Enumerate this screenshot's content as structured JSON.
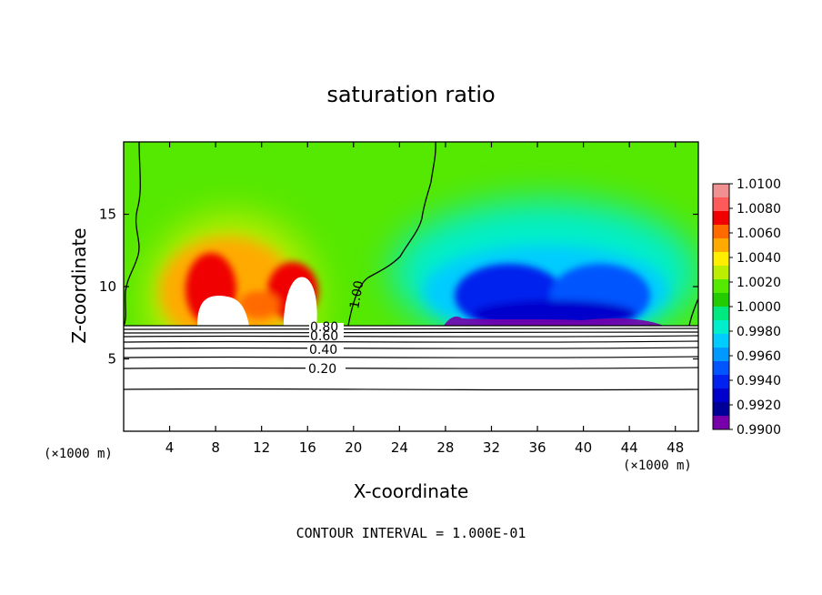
{
  "chart_data": {
    "type": "heatmap",
    "title": "saturation ratio",
    "xlabel": "X-coordinate",
    "ylabel": "Z-coordinate",
    "x_unit": "(×1000 m)",
    "z_unit": "(×1000 m)",
    "xlim": [
      0,
      50
    ],
    "ylim": [
      0,
      20
    ],
    "x_ticks": [
      4,
      8,
      12,
      16,
      20,
      24,
      28,
      32,
      36,
      40,
      44,
      48
    ],
    "y_ticks": [
      5,
      10,
      15
    ],
    "footer": "CONTOUR INTERVAL = 1.000E-01",
    "colorbar": {
      "labels": [
        "1.0100",
        "1.0080",
        "1.0060",
        "1.0040",
        "1.0020",
        "1.0000",
        "0.9980",
        "0.9960",
        "0.9940",
        "0.9920",
        "0.9900"
      ],
      "colors": [
        "#f19090",
        "#ff5a5a",
        "#f00000",
        "#ff6a00",
        "#ffaa00",
        "#ffee00",
        "#bbee00",
        "#55e800",
        "#22cc00",
        "#00e880",
        "#00eecc",
        "#00ccff",
        "#0099ff",
        "#0055ff",
        "#0022ee",
        "#0000cc",
        "#000099",
        "#7700aa"
      ]
    },
    "contour_labels": [
      {
        "text": "1.00",
        "x": 19.2,
        "z": 8.5
      },
      {
        "text": "0.80",
        "x": 17.0,
        "z": 6.8
      },
      {
        "text": "0.60",
        "x": 17.0,
        "z": 6.2
      },
      {
        "text": "0.40",
        "x": 17.0,
        "z": 5.6
      },
      {
        "text": "0.20",
        "x": 17.0,
        "z": 4.3
      }
    ]
  }
}
